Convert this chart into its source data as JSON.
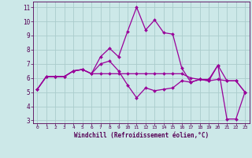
{
  "xlabel": "Windchill (Refroidissement éolien,°C)",
  "background_color": "#cce8e8",
  "grid_color": "#aacccc",
  "line_color": "#990099",
  "xlim": [
    -0.5,
    23.5
  ],
  "ylim": [
    2.8,
    11.4
  ],
  "yticks": [
    3,
    4,
    5,
    6,
    7,
    8,
    9,
    10,
    11
  ],
  "xticks": [
    0,
    1,
    2,
    3,
    4,
    5,
    6,
    7,
    8,
    9,
    10,
    11,
    12,
    13,
    14,
    15,
    16,
    17,
    18,
    19,
    20,
    21,
    22,
    23
  ],
  "series": {
    "line1": {
      "x": [
        0,
        1,
        2,
        3,
        4,
        5,
        6,
        7,
        8,
        9,
        10,
        11,
        12,
        13,
        14,
        15,
        16,
        17,
        18,
        19,
        20,
        21,
        22,
        23
      ],
      "y": [
        5.2,
        6.1,
        6.1,
        6.1,
        6.5,
        6.6,
        6.3,
        7.5,
        8.1,
        7.5,
        9.3,
        11.0,
        9.4,
        10.1,
        9.2,
        9.1,
        6.7,
        5.7,
        5.9,
        5.8,
        6.9,
        3.1,
        3.1,
        5.0
      ]
    },
    "line2": {
      "x": [
        0,
        1,
        2,
        3,
        4,
        5,
        6,
        7,
        8,
        9,
        10,
        11,
        12,
        13,
        14,
        15,
        16,
        17,
        18,
        19,
        20,
        21,
        22,
        23
      ],
      "y": [
        5.2,
        6.1,
        6.1,
        6.1,
        6.5,
        6.6,
        6.3,
        7.0,
        7.2,
        6.5,
        5.5,
        4.6,
        5.3,
        5.1,
        5.2,
        5.3,
        5.8,
        5.7,
        5.9,
        5.8,
        5.9,
        5.8,
        5.8,
        5.0
      ]
    },
    "line3": {
      "x": [
        0,
        1,
        2,
        3,
        4,
        5,
        6,
        7,
        8,
        9,
        10,
        11,
        12,
        13,
        14,
        15,
        16,
        17,
        18,
        19,
        20,
        21,
        22,
        23
      ],
      "y": [
        5.2,
        6.1,
        6.1,
        6.1,
        6.5,
        6.6,
        6.3,
        6.3,
        6.3,
        6.3,
        6.3,
        6.3,
        6.3,
        6.3,
        6.3,
        6.3,
        6.3,
        6.0,
        5.9,
        5.9,
        6.9,
        5.8,
        5.8,
        5.0
      ]
    }
  }
}
